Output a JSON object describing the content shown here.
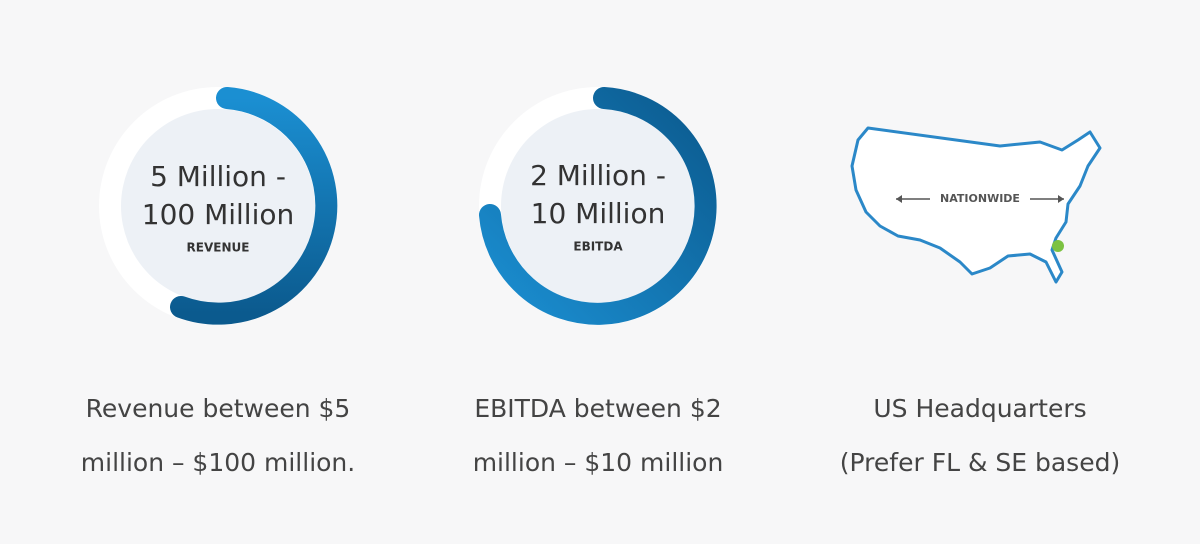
{
  "items": [
    {
      "value_line1": "5 Million -",
      "value_line2": "100 Million",
      "metric": "REVENUE",
      "caption_line1": "Revenue between $5",
      "caption_line2": "million – $100 million."
    },
    {
      "value_line1": "2 Million -",
      "value_line2": "10 Million",
      "metric": "EBITDA",
      "caption_line1": "EBITDA between $2",
      "caption_line2": "million – $10 million"
    },
    {
      "map_label": "NATIONWIDE",
      "caption_line1": "US Headquarters",
      "caption_line2": "(Prefer FL & SE based)"
    }
  ]
}
